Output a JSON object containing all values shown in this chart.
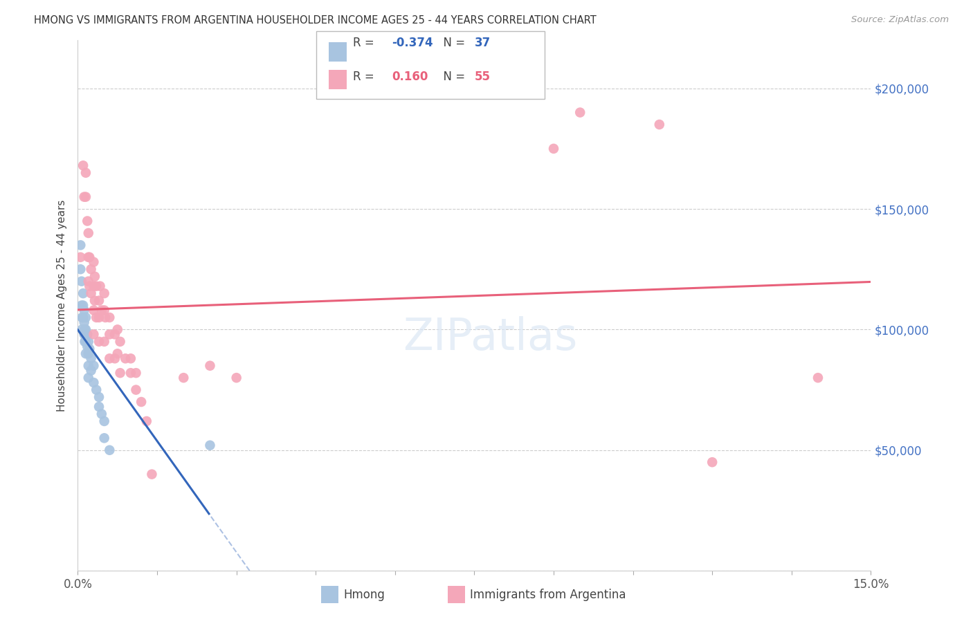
{
  "title": "HMONG VS IMMIGRANTS FROM ARGENTINA HOUSEHOLDER INCOME AGES 25 - 44 YEARS CORRELATION CHART",
  "source": "Source: ZipAtlas.com",
  "ylabel": "Householder Income Ages 25 - 44 years",
  "xlim": [
    0.0,
    0.15
  ],
  "ylim": [
    0,
    220000
  ],
  "yticks": [
    0,
    50000,
    100000,
    150000,
    200000
  ],
  "ytick_labels": [
    "",
    "$50,000",
    "$100,000",
    "$150,000",
    "$200,000"
  ],
  "xticks": [
    0.0,
    0.015,
    0.03,
    0.045,
    0.06,
    0.075,
    0.09,
    0.105,
    0.12,
    0.135,
    0.15
  ],
  "xtick_labels": [
    "0.0%",
    "",
    "",
    "",
    "",
    "",
    "",
    "",
    "",
    "",
    "15.0%"
  ],
  "hmong_R": -0.374,
  "hmong_N": 37,
  "argentina_R": 0.16,
  "argentina_N": 55,
  "hmong_color": "#a8c4e0",
  "argentina_color": "#f4a7b9",
  "hmong_line_color": "#3366bb",
  "argentina_line_color": "#e8607a",
  "background_color": "#ffffff",
  "grid_color": "#cccccc",
  "hmong_x": [
    0.0005,
    0.0005,
    0.0007,
    0.0007,
    0.0008,
    0.0008,
    0.001,
    0.001,
    0.001,
    0.0012,
    0.0012,
    0.0012,
    0.0013,
    0.0013,
    0.0015,
    0.0015,
    0.0015,
    0.0015,
    0.0018,
    0.0018,
    0.002,
    0.002,
    0.002,
    0.002,
    0.0022,
    0.0025,
    0.0025,
    0.003,
    0.003,
    0.0035,
    0.004,
    0.004,
    0.0045,
    0.005,
    0.005,
    0.006,
    0.025
  ],
  "hmong_y": [
    135000,
    125000,
    120000,
    110000,
    105000,
    100000,
    115000,
    110000,
    105000,
    108000,
    103000,
    98000,
    100000,
    95000,
    105000,
    100000,
    95000,
    90000,
    98000,
    93000,
    95000,
    90000,
    85000,
    80000,
    92000,
    88000,
    83000,
    85000,
    78000,
    75000,
    72000,
    68000,
    65000,
    62000,
    55000,
    50000,
    52000
  ],
  "argentina_x": [
    0.0005,
    0.001,
    0.0012,
    0.0015,
    0.0015,
    0.0018,
    0.002,
    0.002,
    0.002,
    0.0022,
    0.0022,
    0.0025,
    0.0025,
    0.003,
    0.003,
    0.003,
    0.003,
    0.0032,
    0.0032,
    0.0035,
    0.0035,
    0.004,
    0.004,
    0.004,
    0.0042,
    0.0045,
    0.005,
    0.005,
    0.005,
    0.0052,
    0.006,
    0.006,
    0.006,
    0.007,
    0.007,
    0.0075,
    0.0075,
    0.008,
    0.008,
    0.009,
    0.01,
    0.01,
    0.011,
    0.011,
    0.012,
    0.013,
    0.014,
    0.02,
    0.025,
    0.03,
    0.09,
    0.095,
    0.11,
    0.12,
    0.14
  ],
  "argentina_y": [
    130000,
    168000,
    155000,
    165000,
    155000,
    145000,
    140000,
    130000,
    120000,
    130000,
    118000,
    125000,
    115000,
    128000,
    118000,
    108000,
    98000,
    122000,
    112000,
    118000,
    105000,
    112000,
    105000,
    95000,
    118000,
    108000,
    115000,
    108000,
    95000,
    105000,
    105000,
    98000,
    88000,
    98000,
    88000,
    100000,
    90000,
    95000,
    82000,
    88000,
    88000,
    82000,
    82000,
    75000,
    70000,
    62000,
    40000,
    80000,
    85000,
    80000,
    175000,
    190000,
    185000,
    45000,
    80000
  ]
}
